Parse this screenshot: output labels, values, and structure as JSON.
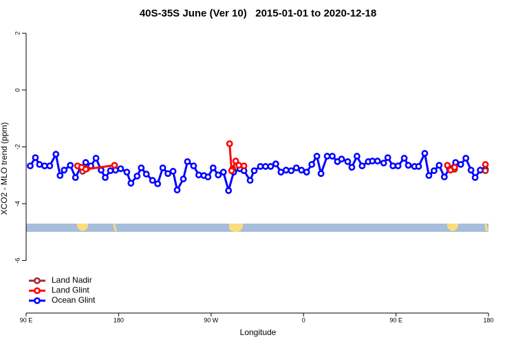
{
  "chart_data": {
    "type": "line",
    "title": "40S-35S June (Ver 10)   2015-01-01 to 2020-12-18",
    "x_label": "Longitude",
    "y_label": "XCO2 - MLO trend (ppm)",
    "xlim": [
      90,
      540
    ],
    "ylim": [
      -7.85,
      2.2
    ],
    "xticks": [
      {
        "value": 90,
        "label": "90 E"
      },
      180,
      {
        "value": 270,
        "label": "90 W"
      },
      {
        "value": 360,
        "label": "0"
      },
      {
        "value": 450,
        "label": "90 E"
      },
      {
        "value": 540,
        "label": "180"
      }
    ],
    "yticks": [
      2,
      0,
      -2,
      -4,
      -6
    ],
    "legend": "bottom-left",
    "series": [
      {
        "name": "Land Nadir",
        "color": "#a52a2a",
        "x": [
          145,
          149,
          null,
          291,
          null,
          507,
          null,
          537
        ],
        "values": [
          -2.86,
          -2.77,
          null,
          -2.77,
          null,
          -2.79,
          null,
          -2.84
        ]
      },
      {
        "name": "Land Glint",
        "color": "#ff0000",
        "x": [
          140,
          144,
          148,
          176,
          null,
          288,
          290,
          294,
          297,
          302,
          null,
          500,
          503,
          507,
          null,
          537
        ],
        "values": [
          -2.67,
          -2.72,
          -2.79,
          -2.65,
          null,
          -1.89,
          -2.84,
          -2.5,
          -2.65,
          -2.67,
          null,
          -2.65,
          -2.82,
          -2.72,
          null,
          -2.62
        ]
      },
      {
        "name": "Ocean Glint",
        "color": "#0000ff",
        "x": [
          94,
          99,
          103,
          108,
          113,
          119,
          123,
          127,
          133,
          138,
          143,
          148,
          153,
          158,
          163,
          167,
          172,
          177,
          182,
          188,
          192,
          198,
          202,
          207,
          213,
          218,
          223,
          228,
          233,
          237,
          243,
          247,
          253,
          258,
          263,
          267,
          272,
          277,
          282,
          287,
          292,
          298,
          302,
          308,
          312,
          318,
          323,
          328,
          333,
          338,
          343,
          348,
          353,
          358,
          363,
          368,
          373,
          377,
          383,
          388,
          393,
          397,
          403,
          407,
          412,
          417,
          423,
          427,
          432,
          438,
          442,
          447,
          452,
          458,
          462,
          468,
          472,
          478,
          482,
          487,
          492,
          497,
          502,
          508,
          513,
          518,
          523,
          527,
          532,
          537
        ],
        "values": [
          -2.67,
          -2.38,
          -2.62,
          -2.67,
          -2.67,
          -2.26,
          -3.01,
          -2.82,
          -2.65,
          -3.08,
          -2.72,
          -2.55,
          -2.67,
          -2.4,
          -2.82,
          -3.08,
          -2.84,
          -2.82,
          -2.77,
          -2.89,
          -3.28,
          -3.03,
          -2.74,
          -2.96,
          -3.18,
          -3.3,
          -2.74,
          -2.94,
          -2.86,
          -3.52,
          -3.13,
          -2.52,
          -2.67,
          -2.99,
          -3.01,
          -3.06,
          -2.74,
          -2.99,
          -2.89,
          -3.54,
          -2.89,
          -2.77,
          -2.84,
          -3.18,
          -2.84,
          -2.69,
          -2.69,
          -2.69,
          -2.6,
          -2.89,
          -2.82,
          -2.84,
          -2.74,
          -2.82,
          -2.89,
          -2.62,
          -2.33,
          -2.94,
          -2.33,
          -2.33,
          -2.52,
          -2.43,
          -2.52,
          -2.72,
          -2.33,
          -2.67,
          -2.52,
          -2.5,
          -2.5,
          -2.57,
          -2.38,
          -2.67,
          -2.67,
          -2.4,
          -2.65,
          -2.69,
          -2.69,
          -2.23,
          -3.01,
          -2.84,
          -2.65,
          -3.06,
          -2.77,
          -2.55,
          -2.62,
          -2.4,
          -2.82,
          -3.08,
          -2.82,
          -2.79
        ]
      }
    ]
  }
}
